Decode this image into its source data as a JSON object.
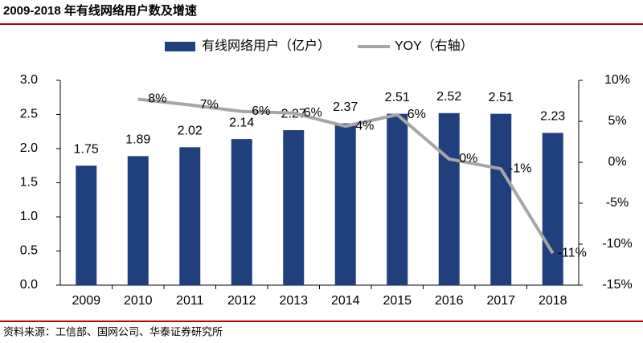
{
  "chart_data": {
    "type": "bar_line",
    "title": "2009-2018 年有线网络用户数及增速",
    "source": "资料来源：工信部、国网公司、华泰证券研究所",
    "categories": [
      "2009",
      "2010",
      "2011",
      "2012",
      "2013",
      "2014",
      "2015",
      "2016",
      "2017",
      "2018"
    ],
    "series": [
      {
        "name": "有线网络用户（亿户）",
        "type": "bar",
        "color": "#1f3f7d",
        "values": [
          1.75,
          1.89,
          2.02,
          2.14,
          2.27,
          2.37,
          2.51,
          2.52,
          2.51,
          2.23
        ]
      },
      {
        "name": "YOY（右轴）",
        "type": "line",
        "color": "#a6a6a6",
        "axis": "y2",
        "values": [
          null,
          7.7,
          7.0,
          6.2,
          6.0,
          4.4,
          5.8,
          0.4,
          -0.8,
          -11.1
        ],
        "value_labels": [
          null,
          "8%",
          "7%",
          "6%",
          "6%",
          "4%",
          "6%",
          "0%",
          "-1%",
          "-11%"
        ]
      }
    ],
    "ylim": [
      0,
      3
    ],
    "yticks": [
      {
        "value": 0,
        "label": "0.0"
      },
      {
        "value": 0.5,
        "label": "0.5"
      },
      {
        "value": 1,
        "label": "1.0"
      },
      {
        "value": 1.5,
        "label": "1.5"
      },
      {
        "value": 2,
        "label": "2.0"
      },
      {
        "value": 2.5,
        "label": "2.5"
      },
      {
        "value": 3,
        "label": "3.0"
      }
    ],
    "y2lim": [
      -15,
      10
    ],
    "y2ticks": [
      {
        "value": -15,
        "label": "-15%"
      },
      {
        "value": -10,
        "label": "-10%"
      },
      {
        "value": -5,
        "label": "-5%"
      },
      {
        "value": 0,
        "label": "0%"
      },
      {
        "value": 5,
        "label": "5%"
      },
      {
        "value": 10,
        "label": "10%"
      }
    ],
    "grid": false
  }
}
